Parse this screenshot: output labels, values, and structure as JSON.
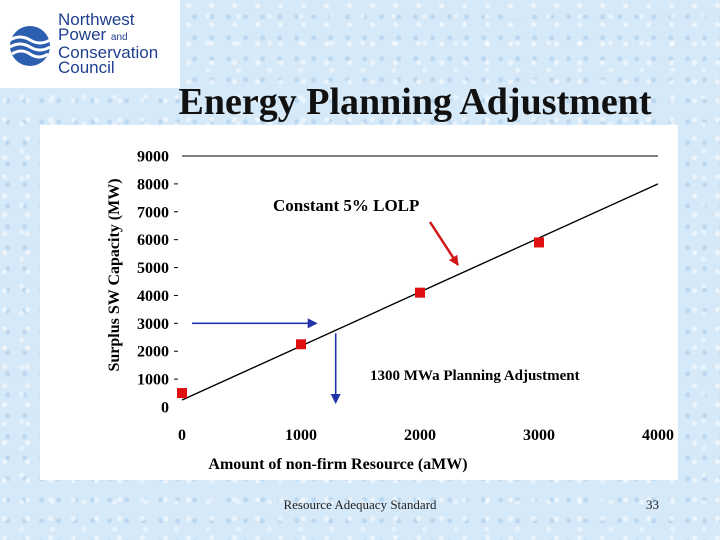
{
  "logo": {
    "line1": "Northwest",
    "line2": "Power",
    "line2_and": "and",
    "line3": "Conservation",
    "line4": "Council",
    "icon": "globe-waves-icon"
  },
  "slide": {
    "title": "Energy Planning Adjustment"
  },
  "footer": {
    "text": "Resource Adequacy Standard",
    "page": "33"
  },
  "colors": {
    "background": "#d6e9f8",
    "marker": "#e01010",
    "annotation_arrow": "#2233aa",
    "callout_arrow": "#d01818",
    "line": "#000000"
  },
  "chart_data": {
    "type": "scatter",
    "xlabel": "Amount of non-firm Resource (aMW)",
    "ylabel": "Surplus SW Capacity (MW)",
    "xlim": [
      0,
      4000
    ],
    "ylim": [
      0,
      9000
    ],
    "x_ticks": [
      0,
      1000,
      2000,
      3000,
      4000
    ],
    "y_ticks": [
      0,
      1000,
      2000,
      3000,
      4000,
      5000,
      6000,
      7000,
      8000,
      9000
    ],
    "grid": "horizontal line at 9000 only",
    "series": [
      {
        "values": [
          [
            0,
            500
          ],
          [
            1000,
            2250
          ],
          [
            2000,
            4100
          ],
          [
            3000,
            5900
          ]
        ]
      }
    ],
    "trend_line": [
      [
        0,
        250
      ],
      [
        4000,
        8000
      ]
    ],
    "annotations": [
      {
        "text": "Constant 5% LOLP"
      },
      {
        "text": "1300 MWa Planning Adjustment"
      }
    ],
    "planning_adjustment": {
      "y_value": 3000,
      "x_value": 1300
    }
  }
}
